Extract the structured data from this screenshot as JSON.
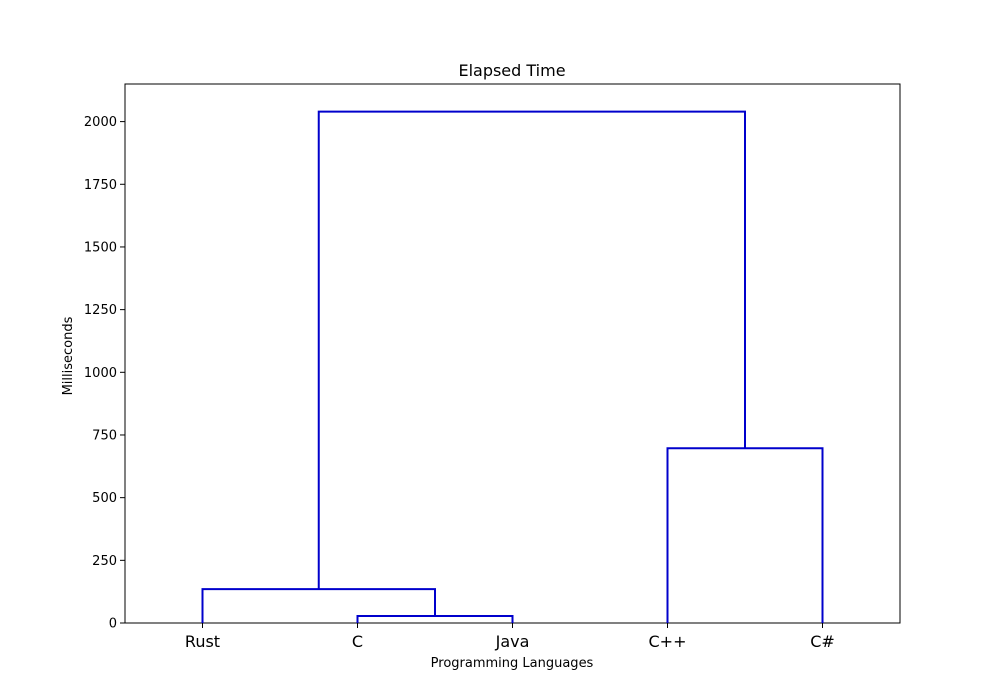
{
  "chart_data": {
    "type": "dendrogram",
    "title": "Elapsed Time",
    "xlabel": "Programming Languages",
    "ylabel": "Milliseconds",
    "leaves": [
      "Rust",
      "C",
      "Java",
      "C++",
      "C#"
    ],
    "ylim": [
      0,
      2150
    ],
    "yticks": [
      0,
      250,
      500,
      750,
      1000,
      1250,
      1500,
      1750,
      2000
    ],
    "ytick_labels": [
      "0",
      "250",
      "500",
      "750",
      "1000",
      "1250",
      "1500",
      "1750",
      "2000"
    ],
    "link_color": "#0000cc",
    "grid": false,
    "merges": [
      {
        "left": "C",
        "right": "Java",
        "height": 28
      },
      {
        "left": "Rust",
        "right": "C+Java",
        "height": 135
      },
      {
        "left": "C++",
        "right": "C#",
        "height": 697
      },
      {
        "left": "Rust+C+Java",
        "right": "C+++C#",
        "height": 2040
      }
    ]
  }
}
